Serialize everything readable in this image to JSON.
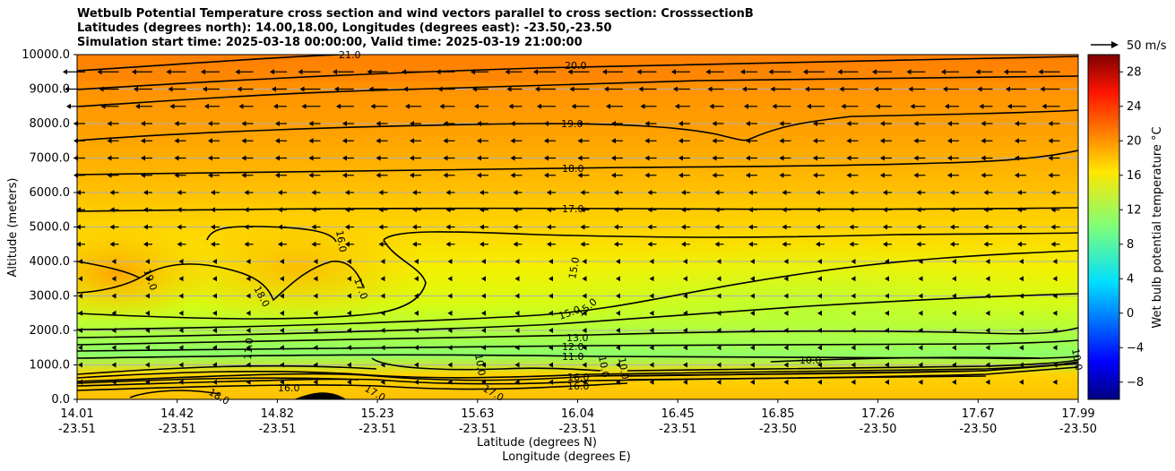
{
  "chart_data": {
    "type": "heatmap",
    "title_lines": [
      "Wetbulb Potential Temperature cross section and wind vectors parallel to cross section: CrosssectionB",
      "Latitudes (degrees north): 14.00,18.00, Longitudes (degrees east): -23.50,-23.50",
      "Simulation start time: 2025-03-18 00:00:00, Valid time: 2025-03-19 21:00:00"
    ],
    "xlabel": "Latitude (degrees N)",
    "xlabel2": "Longitude (degrees E)",
    "ylabel": "Altitude (meters)",
    "xlim": [
      14.01,
      17.99
    ],
    "ylim": [
      0,
      10000
    ],
    "x_ticks": [
      {
        "lat": "14.01",
        "lon": "-23.51"
      },
      {
        "lat": "14.42",
        "lon": "-23.51"
      },
      {
        "lat": "14.82",
        "lon": "-23.51"
      },
      {
        "lat": "15.23",
        "lon": "-23.51"
      },
      {
        "lat": "15.63",
        "lon": "-23.51"
      },
      {
        "lat": "16.04",
        "lon": "-23.51"
      },
      {
        "lat": "16.45",
        "lon": "-23.51"
      },
      {
        "lat": "16.85",
        "lon": "-23.50"
      },
      {
        "lat": "17.26",
        "lon": "-23.50"
      },
      {
        "lat": "17.67",
        "lon": "-23.50"
      },
      {
        "lat": "17.99",
        "lon": "-23.50"
      }
    ],
    "y_ticks": [
      "0.0",
      "1000.0",
      "2000.0",
      "3000.0",
      "4000.0",
      "5000.0",
      "6000.0",
      "7000.0",
      "8000.0",
      "9000.0",
      "10000.0"
    ],
    "y_tick_values": [
      0,
      1000,
      2000,
      3000,
      4000,
      5000,
      6000,
      7000,
      8000,
      9000,
      10000
    ],
    "grid": "horizontal",
    "colorbar": {
      "label": "Wet bulb potential temperature $^\\circ$C",
      "label_text": "Wet bulb potential temperature °C",
      "range": [
        -10,
        30
      ],
      "ticks": [
        "−8",
        "−4",
        "0",
        "4",
        "8",
        "12",
        "16",
        "20",
        "24",
        "28"
      ],
      "tick_values": [
        -8,
        -4,
        0,
        4,
        8,
        12,
        16,
        20,
        24,
        28
      ],
      "colormap": "jet"
    },
    "quiver_key": {
      "label": "50 m/s",
      "speed": 50
    },
    "wind_direction": "toward decreasing latitude (southward) aloft, weak near surface",
    "temperature_field": [
      {
        "alt": 10000,
        "t": 21.5
      },
      {
        "alt": 9000,
        "t": 20.5
      },
      {
        "alt": 8000,
        "t": 19.5
      },
      {
        "alt": 7000,
        "t": 18.5
      },
      {
        "alt": 6000,
        "t": 17.8
      },
      {
        "alt": 5000,
        "t": 16.8
      },
      {
        "alt": 4000,
        "t": 16.0
      },
      {
        "alt": 3000,
        "t": 15.3
      },
      {
        "alt": 2000,
        "t": 14.0
      },
      {
        "alt": 1000,
        "t": 11.5
      },
      {
        "alt": 500,
        "t": 14.0
      },
      {
        "alt": 0,
        "t": 17.5
      }
    ],
    "contour_labels": [
      "21.0",
      "20.0",
      "19.0",
      "18.0",
      "17.0",
      "16.0",
      "15.0",
      "15.0",
      "15.0",
      "19.0",
      "18.0",
      "17.0",
      "16.0",
      "13.0",
      "12.0",
      "11.0",
      "10.0",
      "10.0",
      "11.0",
      "10.0",
      "16.0",
      "16.0",
      "17.0",
      "17.0",
      "18.0",
      "10.0",
      "10.0"
    ]
  }
}
